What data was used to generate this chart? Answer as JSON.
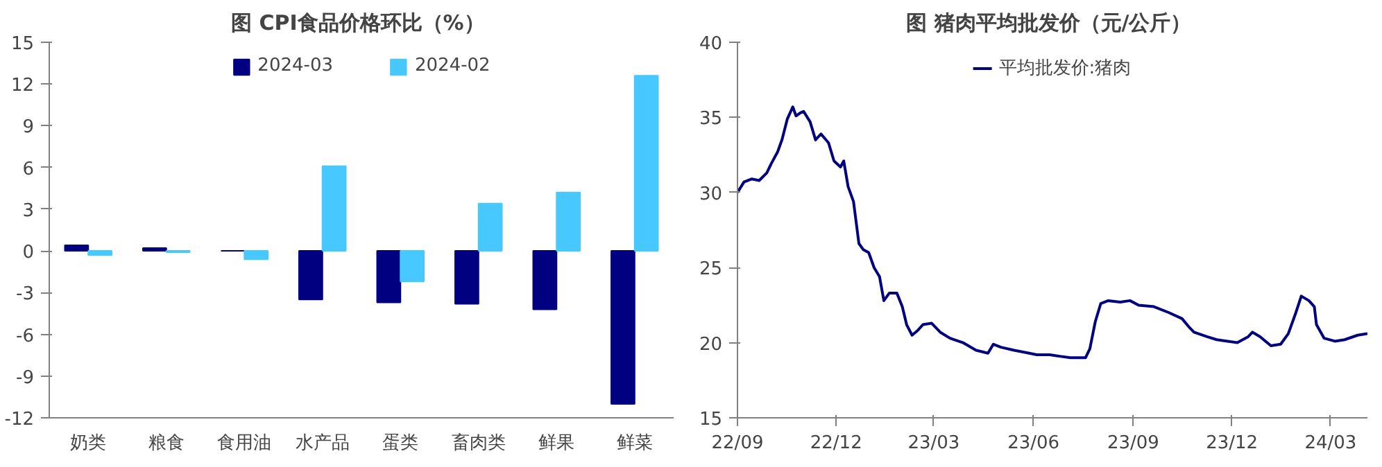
{
  "chart_data": [
    {
      "type": "bar",
      "title": "图  CPI食品价格环比（%）",
      "categories": [
        "奶类",
        "粮食",
        "食用油",
        "水产品",
        "蛋类",
        "畜肉类",
        "鲜果",
        "鲜菜"
      ],
      "series": [
        {
          "name": "2024-03",
          "color": "#000080",
          "values": [
            0.4,
            0.2,
            0.0,
            -3.5,
            -3.7,
            -3.8,
            -4.2,
            -11.0
          ]
        },
        {
          "name": "2024-02",
          "color": "#47c8ff",
          "values": [
            -0.3,
            -0.1,
            -0.6,
            6.1,
            -2.2,
            3.4,
            4.2,
            12.6
          ]
        }
      ],
      "ylim": [
        -12,
        15
      ],
      "yticks": [
        -12,
        -9,
        -6,
        -3,
        0,
        3,
        6,
        9,
        12,
        15
      ],
      "grid": false,
      "legend": "top"
    },
    {
      "type": "line",
      "title": "图  猪肉平均批发价（元/公斤）",
      "x": [
        "2022-09-01",
        "2022-09-07",
        "2022-09-14",
        "2022-09-21",
        "2022-09-28",
        "2022-10-02",
        "2022-10-08",
        "2022-10-12",
        "2022-10-17",
        "2022-10-22",
        "2022-10-25",
        "2022-10-29",
        "2022-11-01",
        "2022-11-07",
        "2022-11-12",
        "2022-11-17",
        "2022-11-24",
        "2022-11-29",
        "2022-12-05",
        "2022-12-08",
        "2022-12-12",
        "2022-12-17",
        "2022-12-22",
        "2022-12-26",
        "2022-12-31",
        "2023-01-05",
        "2023-01-10",
        "2023-01-14",
        "2023-01-19",
        "2023-01-26",
        "2023-01-31",
        "2023-02-04",
        "2023-02-09",
        "2023-02-14",
        "2023-02-19",
        "2023-02-27",
        "2023-03-07",
        "2023-03-16",
        "2023-03-28",
        "2023-04-09",
        "2023-04-20",
        "2023-04-25",
        "2023-05-02",
        "2023-05-14",
        "2023-05-28",
        "2023-06-04",
        "2023-06-16",
        "2023-06-25",
        "2023-07-05",
        "2023-07-19",
        "2023-07-23",
        "2023-07-28",
        "2023-08-02",
        "2023-08-09",
        "2023-08-20",
        "2023-08-29",
        "2023-09-06",
        "2023-09-20",
        "2023-10-04",
        "2023-10-16",
        "2023-10-23",
        "2023-10-27",
        "2023-11-08",
        "2023-11-17",
        "2023-11-27",
        "2023-12-06",
        "2023-12-16",
        "2023-12-20",
        "2023-12-27",
        "2024-01-06",
        "2024-01-15",
        "2024-01-22",
        "2024-01-29",
        "2024-02-03",
        "2024-02-10",
        "2024-02-15",
        "2024-02-17",
        "2024-02-24",
        "2024-03-05",
        "2024-03-14",
        "2024-03-26",
        "2024-04-04"
      ],
      "series": [
        {
          "name": "平均批发价:猪肉",
          "color": "#000080",
          "values": [
            30.0,
            30.7,
            30.9,
            30.8,
            31.3,
            31.9,
            32.7,
            33.5,
            34.9,
            35.7,
            35.1,
            35.3,
            35.4,
            34.7,
            33.5,
            33.9,
            33.3,
            32.1,
            31.7,
            32.1,
            30.4,
            29.4,
            26.6,
            26.2,
            26.0,
            25.0,
            24.4,
            22.8,
            23.3,
            23.3,
            22.4,
            21.2,
            20.5,
            20.8,
            21.2,
            21.3,
            20.7,
            20.3,
            20.0,
            19.5,
            19.3,
            19.9,
            19.7,
            19.5,
            19.3,
            19.2,
            19.2,
            19.1,
            19.0,
            19.0,
            19.6,
            21.4,
            22.6,
            22.8,
            22.7,
            22.8,
            22.5,
            22.4,
            22.0,
            21.6,
            21.0,
            20.7,
            20.4,
            20.2,
            20.1,
            20.0,
            20.4,
            20.7,
            20.4,
            19.8,
            19.9,
            20.6,
            22.0,
            23.1,
            22.8,
            22.4,
            21.2,
            20.3,
            20.1,
            20.2,
            20.5,
            20.6
          ]
        }
      ],
      "xlim": [
        "2022-09-01",
        "2024-04-04"
      ],
      "xticks": [
        {
          "value": "2022-09-01",
          "label": "22/09"
        },
        {
          "value": "2022-12-01",
          "label": "22/12"
        },
        {
          "value": "2023-03-01",
          "label": "23/03"
        },
        {
          "value": "2023-06-01",
          "label": "23/06"
        },
        {
          "value": "2023-09-01",
          "label": "23/09"
        },
        {
          "value": "2023-12-01",
          "label": "23/12"
        },
        {
          "value": "2024-03-01",
          "label": "24/03"
        }
      ],
      "ylim": [
        15,
        40
      ],
      "yticks": [
        15,
        20,
        25,
        30,
        35,
        40
      ],
      "grid": false,
      "legend": "top",
      "marker": "none",
      "line_style": "solid"
    }
  ]
}
